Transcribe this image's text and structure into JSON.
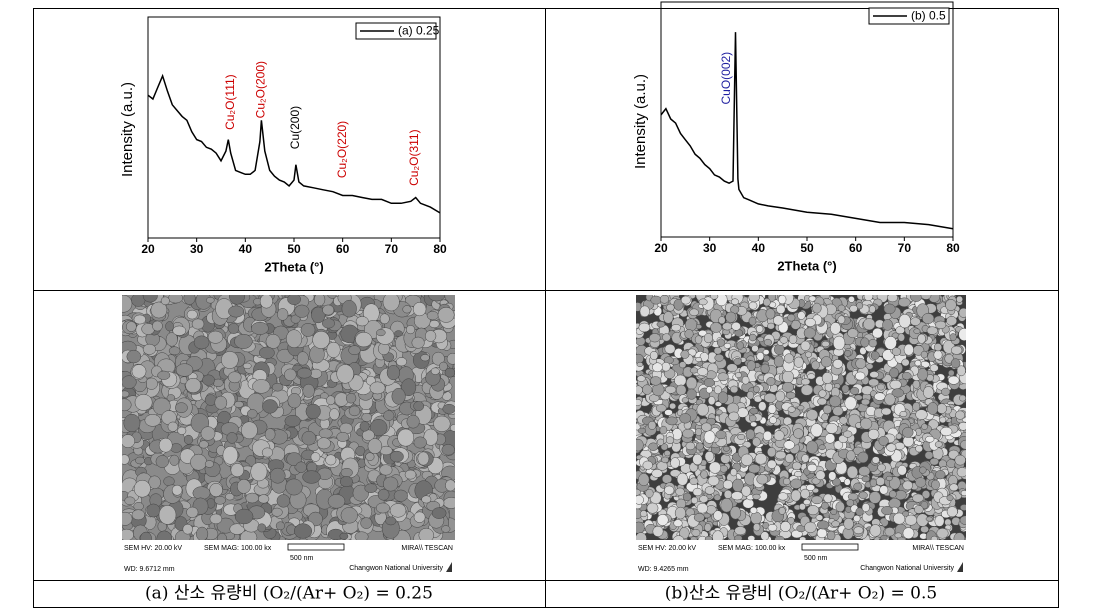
{
  "chart_data": [
    {
      "type": "line",
      "xlabel": "2Theta (°)",
      "ylabel": "Intensity (a.u.)",
      "legend": "upper right",
      "xlim": [
        20,
        80
      ],
      "xticks": [
        20,
        30,
        40,
        50,
        60,
        70,
        80
      ],
      "ylim": [
        0,
        100
      ],
      "x": [
        20,
        21,
        22,
        23,
        24,
        25,
        26,
        27,
        28,
        29,
        30,
        31,
        32,
        33,
        34,
        35,
        36,
        36.5,
        37,
        38,
        39,
        40,
        41,
        42,
        43,
        43.3,
        44,
        45,
        46,
        47,
        48,
        49,
        50,
        50.4,
        51,
        52,
        54,
        56,
        58,
        60,
        62,
        64,
        66,
        68,
        70,
        72,
        74,
        75,
        76,
        78,
        80
      ],
      "series": [
        {
          "name": "(a) 0.25",
          "color": "#000000",
          "values": [
            74,
            72,
            78,
            84,
            76,
            69,
            66,
            63,
            61,
            55,
            51,
            50,
            47,
            46,
            44,
            40,
            45,
            51,
            44,
            35,
            34,
            33,
            33,
            35,
            50,
            61,
            45,
            35,
            32,
            30,
            29,
            27,
            30,
            38,
            29,
            27,
            26,
            25,
            24,
            22,
            22,
            21,
            20,
            20,
            18,
            18,
            19,
            21,
            18,
            16,
            13
          ]
        }
      ],
      "annotations": [
        {
          "text": "Cu₂O(111)",
          "x": 37,
          "y": 56,
          "color": "#cc0000"
        },
        {
          "text": "Cu₂O(200)",
          "x": 43.3,
          "y": 62,
          "color": "#cc0000"
        },
        {
          "text": "Cu(200)",
          "x": 50.4,
          "y": 46,
          "color": "#000000"
        },
        {
          "text": "Cu₂O(220)",
          "x": 60,
          "y": 31,
          "color": "#cc0000"
        },
        {
          "text": "Cu₂O(311)",
          "x": 74.8,
          "y": 27,
          "color": "#cc0000"
        }
      ]
    },
    {
      "type": "line",
      "xlabel": "2Theta (°)",
      "ylabel": "Intensity (a.u.)",
      "legend": "upper right",
      "xlim": [
        20,
        80
      ],
      "xticks": [
        20,
        30,
        40,
        50,
        60,
        70,
        80
      ],
      "ylim": [
        0,
        100
      ],
      "x": [
        20,
        21,
        22,
        23,
        24,
        25,
        26,
        27,
        28,
        29,
        30,
        31,
        32,
        33,
        34,
        34.8,
        35.3,
        35.8,
        36,
        37,
        38,
        40,
        42,
        45,
        50,
        55,
        60,
        65,
        70,
        75,
        80
      ],
      "series": [
        {
          "name": "(b) 0.5",
          "color": "#000000",
          "values": [
            59,
            62,
            57,
            55,
            50,
            47,
            44,
            40,
            38,
            35,
            33,
            30,
            29,
            27,
            26,
            27,
            99,
            28,
            23,
            19,
            18,
            16,
            15,
            14,
            12,
            11,
            9,
            7,
            7,
            6,
            4
          ]
        }
      ],
      "annotations": [
        {
          "text": "CuO(002)",
          "x": 33.5,
          "y": 64,
          "color": "#1f1fa0"
        }
      ]
    }
  ],
  "sem_images": [
    {
      "hv": "SEM HV: 20.00 kV",
      "mag": "SEM MAG: 100.00 kx",
      "wd": "WD: 9.6712 mm",
      "scale": "500 nm",
      "brand": "MIRA\\\\ TESCAN",
      "institution": "Changwon National University"
    },
    {
      "hv": "SEM HV: 20.00 kV",
      "mag": "SEM MAG: 100.00 kx",
      "wd": "WD: 9.4265 mm",
      "scale": "500 nm",
      "brand": "MIRA\\\\ TESCAN",
      "institution": "Changwon National University"
    }
  ],
  "captions": [
    "(a) 산소 유량비 (O₂/(Ar+ O₂) = 0.25",
    "(b)산소 유량비 (O₂/(Ar+ O₂) = 0.5"
  ]
}
